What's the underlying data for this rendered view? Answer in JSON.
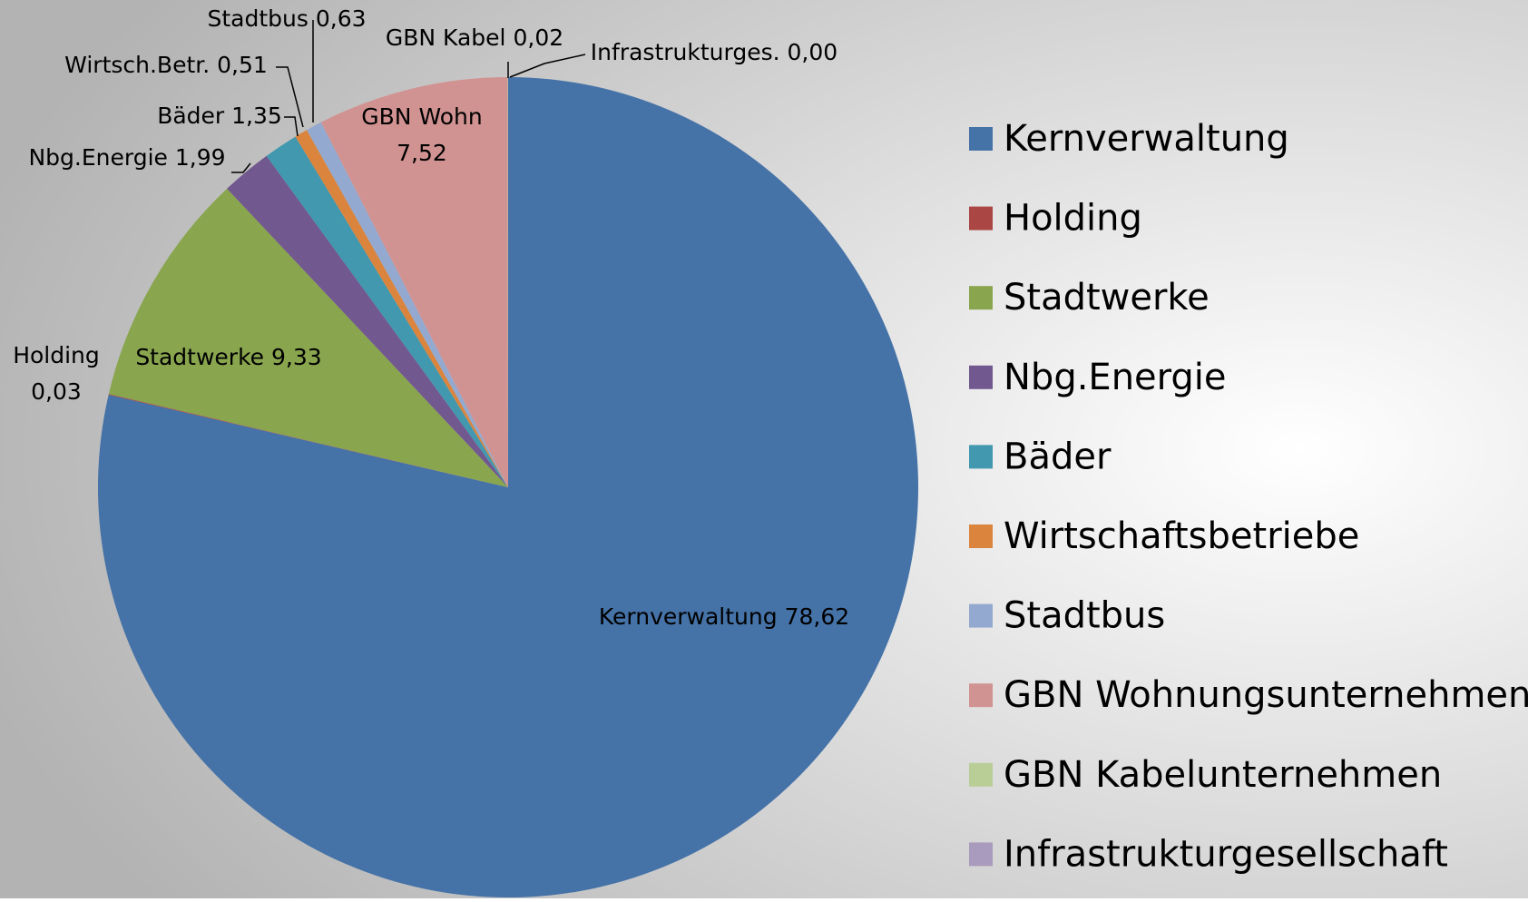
{
  "chart_data": {
    "type": "pie",
    "categories": [
      "Kernverwaltung",
      "Holding",
      "Stadtwerke",
      "Nbg.Energie",
      "Bäder",
      "Wirtschaftsbetriebe",
      "Stadtbus",
      "GBN Wohnungsunternehmen",
      "GBN Kabelunternehmen",
      "Infrastrukturgesellschaft"
    ],
    "values": [
      78.62,
      0.03,
      9.33,
      1.99,
      1.35,
      0.51,
      0.63,
      7.52,
      0.02,
      0.0
    ],
    "label_names": [
      "Kernverwaltung",
      "Holding",
      "Stadtwerke",
      "Nbg.Energie",
      "Bäder",
      "Wirtsch.Betr.",
      "Stadtbus",
      "GBN Wohn",
      "GBN Kabel",
      "Infrastrukturges."
    ],
    "value_labels": [
      "78,62",
      "0,03",
      "9,33",
      "1,99",
      "1,35",
      "0,51",
      "0,63",
      "7,52",
      "0,02",
      "0,00"
    ],
    "colors": [
      "#4572a7",
      "#aa4643",
      "#89a54e",
      "#71588f",
      "#4198af",
      "#db843d",
      "#93a9cf",
      "#d19392",
      "#b9cd96",
      "#a99bbd"
    ],
    "legend": "right"
  }
}
